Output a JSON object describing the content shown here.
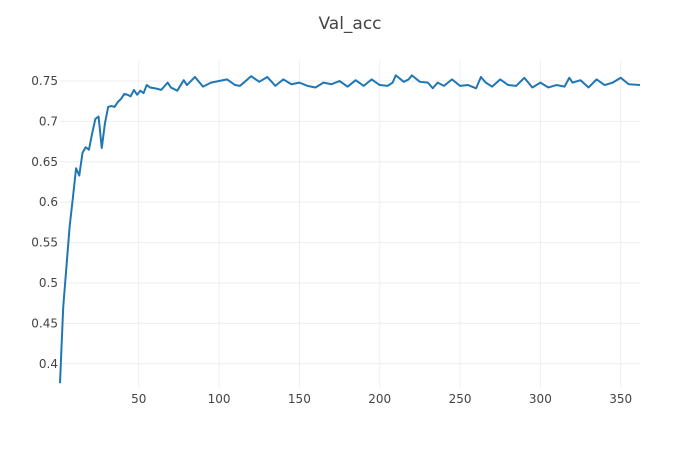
{
  "chart_data": {
    "type": "line",
    "title": "Val_acc",
    "xlabel": "",
    "ylabel": "",
    "xlim": [
      1,
      362
    ],
    "ylim": [
      0.37,
      0.776
    ],
    "x_ticks": [
      50,
      100,
      150,
      200,
      250,
      300,
      350
    ],
    "y_ticks": [
      0.4,
      0.45,
      0.5,
      0.55,
      0.6,
      0.65,
      0.7,
      0.75
    ],
    "grid": true,
    "color": "#1f77b4",
    "series": [
      {
        "x": [
          1,
          3,
          5,
          7,
          9,
          11,
          13,
          15,
          17,
          19,
          21,
          23,
          25,
          27,
          29,
          31,
          33,
          35,
          37,
          39,
          41,
          43,
          45,
          47,
          49,
          51,
          53,
          55,
          57,
          60,
          64,
          68,
          70,
          74,
          78,
          80,
          85,
          90,
          95,
          100,
          105,
          110,
          113,
          116,
          120,
          125,
          130,
          135,
          140,
          145,
          150,
          155,
          160,
          165,
          170,
          175,
          180,
          185,
          190,
          195,
          200,
          205,
          208,
          210,
          215,
          218,
          220,
          225,
          230,
          233,
          236,
          240,
          245,
          250,
          255,
          260,
          263,
          266,
          270,
          275,
          280,
          285,
          290,
          295,
          300,
          305,
          310,
          315,
          318,
          320,
          325,
          330,
          335,
          340,
          345,
          350,
          355,
          362
        ],
        "values": [
          0.376,
          0.47,
          0.52,
          0.57,
          0.605,
          0.642,
          0.633,
          0.661,
          0.668,
          0.665,
          0.685,
          0.703,
          0.706,
          0.667,
          0.698,
          0.718,
          0.719,
          0.718,
          0.724,
          0.728,
          0.734,
          0.733,
          0.731,
          0.739,
          0.733,
          0.738,
          0.735,
          0.745,
          0.742,
          0.741,
          0.739,
          0.748,
          0.742,
          0.738,
          0.751,
          0.745,
          0.755,
          0.743,
          0.748,
          0.75,
          0.752,
          0.745,
          0.744,
          0.749,
          0.756,
          0.749,
          0.755,
          0.744,
          0.752,
          0.746,
          0.748,
          0.744,
          0.742,
          0.748,
          0.746,
          0.75,
          0.743,
          0.751,
          0.744,
          0.752,
          0.745,
          0.744,
          0.748,
          0.757,
          0.749,
          0.752,
          0.757,
          0.749,
          0.748,
          0.741,
          0.748,
          0.744,
          0.752,
          0.744,
          0.745,
          0.741,
          0.755,
          0.748,
          0.743,
          0.752,
          0.745,
          0.744,
          0.754,
          0.742,
          0.748,
          0.742,
          0.745,
          0.743,
          0.754,
          0.748,
          0.751,
          0.742,
          0.752,
          0.745,
          0.748,
          0.754,
          0.746,
          0.745
        ]
      }
    ]
  }
}
